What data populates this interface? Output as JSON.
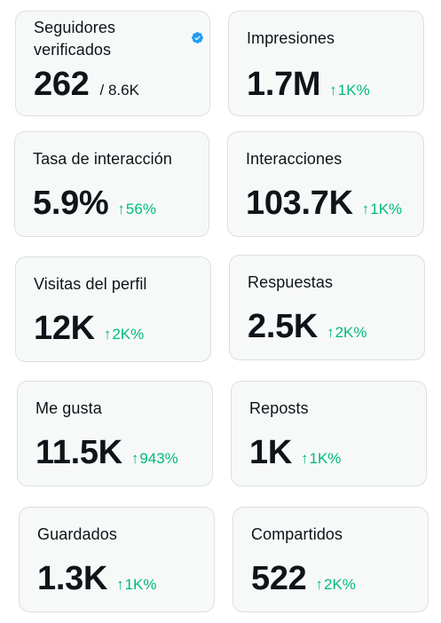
{
  "colors": {
    "card_bg": "#f7f9f9",
    "card_border": "#dcdfe2",
    "text": "#0f1419",
    "positive_delta": "#00ba7c",
    "verified_badge": "#1d9bf0"
  },
  "icons": {
    "verified": "verified-badge-icon",
    "up_arrow": "arrow-up-icon"
  },
  "metrics": {
    "verified_followers": {
      "label": "Seguidores verificados",
      "value": "262",
      "total": "/ 8.6K"
    },
    "impressions": {
      "label": "Impresiones",
      "value": "1.7M",
      "arrow": "↑",
      "delta": "1K%"
    },
    "engagement_rate": {
      "label": "Tasa de interacción",
      "value": "5.9%",
      "arrow": "↑",
      "delta": "56%"
    },
    "engagements": {
      "label": "Interacciones",
      "value": "103.7K",
      "arrow": "↑",
      "delta": "1K%"
    },
    "profile_visits": {
      "label": "Visitas del perfil",
      "value": "12K",
      "arrow": "↑",
      "delta": "2K%"
    },
    "replies": {
      "label": "Respuestas",
      "value": "2.5K",
      "arrow": "↑",
      "delta": "2K%"
    },
    "likes": {
      "label": "Me gusta",
      "value": "11.5K",
      "arrow": "↑",
      "delta": "943%"
    },
    "reposts": {
      "label": "Reposts",
      "value": "1K",
      "arrow": "↑",
      "delta": "1K%"
    },
    "bookmarks": {
      "label": "Guardados",
      "value": "1.3K",
      "arrow": "↑",
      "delta": "1K%"
    },
    "shares": {
      "label": "Compartidos",
      "value": "522",
      "arrow": "↑",
      "delta": "2K%"
    }
  }
}
